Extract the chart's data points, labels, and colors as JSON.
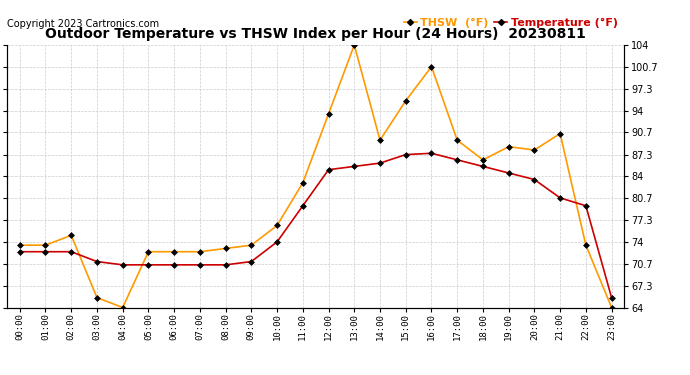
{
  "title": "Outdoor Temperature vs THSW Index per Hour (24 Hours)  20230811",
  "copyright": "Copyright 2023 Cartronics.com",
  "hours": [
    "00:00",
    "01:00",
    "02:00",
    "03:00",
    "04:00",
    "05:00",
    "06:00",
    "07:00",
    "08:00",
    "09:00",
    "10:00",
    "11:00",
    "12:00",
    "13:00",
    "14:00",
    "15:00",
    "16:00",
    "17:00",
    "18:00",
    "19:00",
    "20:00",
    "21:00",
    "22:00",
    "23:00"
  ],
  "temperature": [
    72.5,
    72.5,
    72.5,
    71.0,
    70.5,
    70.5,
    70.5,
    70.5,
    70.5,
    71.0,
    74.0,
    79.5,
    85.0,
    85.5,
    86.0,
    87.3,
    87.5,
    86.5,
    85.5,
    84.5,
    83.5,
    80.7,
    79.5,
    65.5
  ],
  "thsw": [
    73.5,
    73.5,
    75.0,
    65.5,
    64.0,
    72.5,
    72.5,
    72.5,
    73.0,
    73.5,
    76.5,
    83.0,
    93.5,
    104.0,
    89.5,
    95.5,
    100.7,
    89.5,
    86.5,
    88.5,
    88.0,
    90.5,
    73.5,
    64.0
  ],
  "temp_color": "#cc0000",
  "thsw_color": "#ff9900",
  "background_color": "#ffffff",
  "grid_color": "#cccccc",
  "ylim_min": 64.0,
  "ylim_max": 104.0,
  "yticks": [
    64.0,
    67.3,
    70.7,
    74.0,
    77.3,
    80.7,
    84.0,
    87.3,
    90.7,
    94.0,
    97.3,
    100.7,
    104.0
  ],
  "title_fontsize": 10,
  "copyright_fontsize": 7,
  "legend_thsw": "THSW  (°F)",
  "legend_temp": "Temperature (°F)",
  "marker": "D",
  "marker_size": 3,
  "line_width": 1.2
}
